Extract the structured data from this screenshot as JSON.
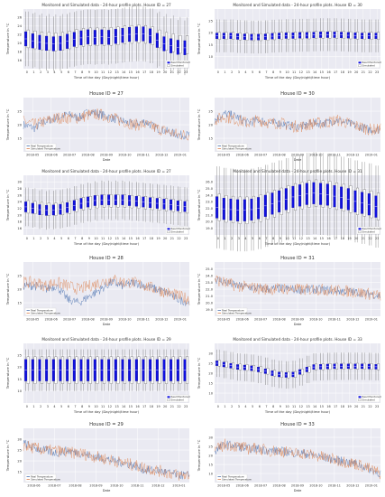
{
  "colors": {
    "panel_bg": "#eaeaf2",
    "grid": "#ffffff",
    "box_real": "#1010e0",
    "box_sim": "#ffffff",
    "line_real": "#4c72b0",
    "line_sim": "#dd8452",
    "line_extra": "#55a868",
    "text": "#333333"
  },
  "chart_data": [
    {
      "type": "box",
      "title": "Monitored and Simulated data - 24-hour profile plots. House ID = 27",
      "xlabel": "Time of the day (Day/night/time hour)",
      "ylabel": "Temperature in °C",
      "categories": [
        "0",
        "1",
        "2",
        "3",
        "4",
        "5",
        "6",
        "7",
        "8",
        "9",
        "10",
        "11",
        "12",
        "13",
        "14",
        "15",
        "16",
        "17",
        "18",
        "19",
        "20",
        "21",
        "22",
        "23"
      ],
      "yticks": [
        "16",
        "18",
        "20",
        "22",
        "24",
        "26"
      ],
      "ylim": [
        15,
        27
      ],
      "series": [
        {
          "name": "Real Monitored",
          "values": [
            21,
            20.6,
            20.3,
            20.1,
            20.0,
            20.1,
            20.5,
            20.9,
            21.2,
            21.4,
            21.3,
            21.4,
            21.3,
            21.5,
            21.7,
            21.9,
            22.0,
            22.0,
            21.6,
            20.7,
            20.0,
            19.6,
            19.3,
            19.2
          ]
        },
        {
          "name": "Simulated",
          "values": [
            21,
            20.8,
            20.6,
            20.5,
            20.4,
            20.5,
            20.8,
            21.1,
            21.3,
            21.4,
            21.4,
            21.5,
            21.5,
            21.6,
            21.8,
            21.9,
            22.0,
            21.9,
            21.6,
            21.0,
            20.5,
            20.2,
            19.9,
            19.8
          ]
        }
      ],
      "legend": "right-bottom",
      "variant": "left-dense"
    },
    {
      "type": "box",
      "title": "Monitored and Simulated data - 24-hour profile plots. House ID = 30",
      "xlabel": "Time of the day (Day/night/time hour)",
      "ylabel": "Temperature in °C",
      "categories": [
        "0",
        "1",
        "2",
        "3",
        "4",
        "5",
        "6",
        "7",
        "8",
        "9",
        "10",
        "11",
        "12",
        "13",
        "14",
        "15",
        "16",
        "17",
        "18",
        "19",
        "20",
        "21",
        "22",
        "23"
      ],
      "yticks": [
        "10",
        "15",
        "20",
        "25"
      ],
      "ylim": [
        8,
        28
      ],
      "series": [
        {
          "name": "Real Monitored",
          "values": [
            19,
            19,
            19,
            18.8,
            18.7,
            18.6,
            18.6,
            18.7,
            18.9,
            19,
            19.1,
            19.1,
            19.2,
            19.2,
            19.3,
            19.4,
            19.4,
            19.4,
            19.3,
            19.2,
            19.1,
            19,
            19,
            19
          ]
        },
        {
          "name": "Simulated",
          "values": [
            19,
            19,
            19,
            18.8,
            18.7,
            18.6,
            18.6,
            18.7,
            18.9,
            19,
            19.1,
            19.1,
            19.2,
            19.2,
            19.3,
            19.4,
            19.4,
            19.4,
            19.3,
            19.2,
            19.1,
            19,
            19,
            19
          ]
        }
      ],
      "legend": "right-bottom",
      "variant": "thin"
    },
    {
      "type": "line",
      "title": "House ID = 27",
      "xlabel": "Date",
      "ylabel": "Temperature in °C",
      "xticks": [
        "2018-05",
        "2018-06",
        "2018-07",
        "2018-08",
        "2018-09",
        "2018-10",
        "2018-11",
        "2018-12",
        "2019-01"
      ],
      "yticks": [
        "15",
        "20",
        "25"
      ],
      "ylim": [
        12,
        28
      ],
      "series": [
        {
          "name": "Real Temperature",
          "values": [
            20,
            19,
            21,
            22,
            23,
            22,
            24,
            23,
            22,
            21,
            20,
            21,
            19,
            18,
            17,
            17
          ]
        },
        {
          "name": "Simulated Temperature",
          "values": [
            21,
            20,
            21,
            22,
            22,
            22,
            23,
            23,
            22,
            21,
            20,
            20,
            19,
            18,
            17,
            17
          ]
        }
      ],
      "legend": "bottom-left"
    },
    {
      "type": "line",
      "title": "House ID = 30",
      "xlabel": "Date",
      "ylabel": "Temperature in °C",
      "xticks": [
        "2018-05",
        "2018-06",
        "2018-07",
        "2018-08",
        "2018-09",
        "2018-10",
        "2018-11",
        "2018-12",
        "2019-01"
      ],
      "yticks": [
        "15",
        "20",
        "25"
      ],
      "ylim": [
        10,
        27
      ],
      "series": [
        {
          "name": "Real Temperature",
          "values": [
            20,
            22,
            21,
            19,
            20,
            19,
            19,
            18,
            18,
            19,
            19,
            20,
            19,
            18,
            17,
            17
          ]
        },
        {
          "name": "Simulated Temperature",
          "values": [
            20,
            21,
            20,
            19,
            20,
            19,
            19,
            18,
            18,
            19,
            19,
            20,
            19,
            18,
            17,
            17
          ]
        }
      ],
      "legend": "bottom-left"
    },
    {
      "type": "box",
      "title": "Monitored and Simulated data - 24-hour profile plots. House ID = 27",
      "xlabel": "Time of the day (Day/night/time hour)",
      "ylabel": "Temperature in °C",
      "categories": [
        "0",
        "1",
        "2",
        "3",
        "4",
        "5",
        "6",
        "7",
        "8",
        "9",
        "10",
        "11",
        "12",
        "13",
        "14",
        "15",
        "16",
        "17",
        "18",
        "19",
        "20",
        "21",
        "22",
        "23"
      ],
      "yticks": [
        "16",
        "18",
        "20",
        "22",
        "24",
        "26",
        "28",
        "30"
      ],
      "ylim": [
        14,
        31
      ],
      "series": [
        {
          "name": "Real Monitored",
          "values": [
            22,
            21.6,
            21.2,
            21,
            21.1,
            21.3,
            21.8,
            22.4,
            23,
            23.4,
            23.8,
            24,
            24,
            24,
            24,
            23.8,
            23.6,
            23.4,
            23.2,
            23,
            22.8,
            22.6,
            22.3,
            22.1
          ]
        },
        {
          "name": "Simulated",
          "values": [
            22,
            21.8,
            21.5,
            21.3,
            21.3,
            21.5,
            21.9,
            22.4,
            22.9,
            23.2,
            23.5,
            23.7,
            23.7,
            23.7,
            23.7,
            23.5,
            23.4,
            23.2,
            23,
            22.8,
            22.6,
            22.4,
            22.2,
            22
          ]
        }
      ],
      "legend": "right-bottom",
      "variant": "wide"
    },
    {
      "type": "box",
      "title": "Monitored and Simulated data - 24-hour profile plots. House ID = 31",
      "xlabel": "Time of the day (Day/night/time hour)",
      "ylabel": "Temperature in °C",
      "categories": [
        "0",
        "1",
        "2",
        "3",
        "4",
        "5",
        "6",
        "7",
        "8",
        "9",
        "10",
        "11",
        "12",
        "13",
        "14",
        "15",
        "16",
        "17",
        "18",
        "19",
        "20",
        "21",
        "22",
        "23"
      ],
      "yticks": [
        "19.0",
        "20.0",
        "21.0",
        "22.0",
        "23.0",
        "24.0",
        "25.0",
        "26.0"
      ],
      "ylim": [
        18.5,
        26.5
      ],
      "series": [
        {
          "name": "Real Monitored",
          "values": [
            22.2,
            22,
            21.9,
            21.8,
            21.8,
            21.9,
            22.1,
            22.4,
            22.7,
            23,
            23.3,
            23.6,
            23.8,
            24,
            24.1,
            24,
            23.9,
            23.7,
            23.5,
            23.3,
            23,
            22.8,
            22.6,
            22.3
          ]
        },
        {
          "name": "Simulated",
          "values": [
            22.2,
            22,
            21.9,
            21.8,
            21.8,
            21.9,
            22.1,
            22.4,
            22.7,
            23,
            23.3,
            23.6,
            23.8,
            24,
            24.1,
            24,
            23.9,
            23.7,
            23.5,
            23.3,
            23,
            22.8,
            22.6,
            22.3
          ]
        }
      ],
      "legend": "right-bottom",
      "variant": "wide"
    },
    {
      "type": "line",
      "title": "House ID = 28",
      "xlabel": "Date",
      "ylabel": "Temperature in °C",
      "xticks": [
        "2018-05",
        "2018-06",
        "2018-07",
        "2018-08",
        "2018-09",
        "2018-10",
        "2018-11",
        "2018-12",
        "2019-01"
      ],
      "yticks": [
        "15",
        "20",
        "25"
      ],
      "ylim": [
        12,
        28
      ],
      "series": [
        {
          "name": "Real Temperature",
          "values": [
            21,
            21,
            20,
            21,
            17,
            16,
            18,
            20,
            22,
            21,
            22,
            21,
            20,
            19,
            17,
            16
          ]
        },
        {
          "name": "Simulated Temperature",
          "values": [
            22,
            22,
            21,
            22,
            21,
            20,
            21,
            22,
            23,
            22,
            22,
            21,
            20,
            19,
            18,
            17
          ]
        }
      ],
      "legend": "bottom-left"
    },
    {
      "type": "line",
      "title": "House ID = 31",
      "xlabel": "Date",
      "ylabel": "Temperature in °C",
      "xticks": [
        "2018-05",
        "2018-06",
        "2018-07",
        "2018-08",
        "2018-09",
        "2018-10",
        "2018-11",
        "2018-12",
        "2019-01"
      ],
      "yticks": [
        "19.0",
        "20.0",
        "21.0",
        "22.0",
        "23.0",
        "24.0",
        "25.0"
      ],
      "ylim": [
        18.5,
        26.5
      ],
      "series": [
        {
          "name": "Real Temperature",
          "values": [
            24,
            23.5,
            23,
            22.8,
            22.6,
            22.5,
            22.6,
            22.5,
            22.4,
            22.5,
            22.4,
            22.3,
            22.2,
            22,
            21.8,
            21.5
          ]
        },
        {
          "name": "Simulated Temperature",
          "values": [
            24,
            23.4,
            23,
            22.8,
            22.6,
            22.5,
            22.6,
            22.5,
            22.4,
            22.5,
            22.4,
            22.3,
            22.2,
            22,
            21.8,
            21.5
          ]
        }
      ],
      "legend": "bottom-left"
    },
    {
      "type": "box",
      "title": "Monitored and Simulated data - 24-hour profile plots. House ID = 29",
      "xlabel": "Time of the day (Day/night/time hour)",
      "ylabel": "Temperature in °C",
      "categories": [
        "0",
        "1",
        "2",
        "3",
        "4",
        "5",
        "6",
        "7",
        "8",
        "9",
        "10",
        "11",
        "12",
        "13",
        "14",
        "15",
        "16",
        "17",
        "18",
        "19",
        "20",
        "21",
        "22",
        "23"
      ],
      "yticks": [
        "10",
        "15",
        "20",
        "25"
      ],
      "ylim": [
        8,
        28
      ],
      "series": [
        {
          "name": "Real Monitored",
          "values": [
            19,
            19,
            19,
            19,
            19,
            19,
            19,
            19,
            19,
            19,
            19,
            19,
            19,
            19,
            19,
            19,
            19,
            19,
            19,
            19,
            19,
            19,
            19,
            19
          ]
        },
        {
          "name": "Simulated",
          "values": [
            19,
            19,
            19,
            19,
            19,
            19,
            19,
            19,
            19,
            19,
            19,
            19,
            19,
            19,
            19,
            19,
            19,
            19,
            19,
            19,
            19,
            19,
            19,
            19
          ]
        }
      ],
      "legend": "right-bottom",
      "variant": "tall"
    },
    {
      "type": "box",
      "title": "Monitored and Simulated data - 24-hour profile plots. House ID = 33",
      "xlabel": "Time of the day (Day/night/time hour)",
      "ylabel": "Temperature in °C",
      "categories": [
        "0",
        "1",
        "2",
        "3",
        "4",
        "5",
        "6",
        "7",
        "8",
        "9",
        "10",
        "11",
        "12",
        "13",
        "14",
        "15",
        "16",
        "17",
        "18",
        "19",
        "20",
        "21",
        "22",
        "23"
      ],
      "yticks": [
        "10",
        "15",
        "20",
        "25",
        "30"
      ],
      "ylim": [
        8,
        32
      ],
      "series": [
        {
          "name": "Real Monitored",
          "values": [
            24,
            23.5,
            23,
            22.5,
            22.3,
            22,
            21.5,
            20.8,
            20,
            19.5,
            19.3,
            19.5,
            20.5,
            21.5,
            22.5,
            22.6,
            22.7,
            22.8,
            22.8,
            22.8,
            22.8,
            22.8,
            22.7,
            22.6
          ]
        },
        {
          "name": "Simulated",
          "values": [
            24,
            23.5,
            23,
            22.5,
            22.3,
            22,
            21.5,
            20.8,
            20,
            19.5,
            19.3,
            19.5,
            20.5,
            21.5,
            22.5,
            22.6,
            22.7,
            22.8,
            22.8,
            22.8,
            22.8,
            22.8,
            22.7,
            22.6
          ]
        }
      ],
      "legend": "right-bottom",
      "variant": "thin"
    },
    {
      "type": "line",
      "title": "House ID = 29",
      "xlabel": "Date",
      "ylabel": "Temperature in °C",
      "xticks": [
        "2018-06",
        "2018-07",
        "2018-08",
        "2018-09",
        "2018-10",
        "2018-11",
        "2018-12",
        "2019-01"
      ],
      "yticks": [
        "15",
        "20",
        "25",
        "30"
      ],
      "ylim": [
        10,
        32
      ],
      "series": [
        {
          "name": "Real Temperature",
          "values": [
            26,
            24,
            23,
            22,
            23,
            22,
            21,
            20,
            19,
            18,
            17,
            15,
            15,
            14,
            13,
            13
          ]
        },
        {
          "name": "Simulated Temperature",
          "values": [
            25,
            24,
            23,
            23,
            22,
            22,
            21,
            20,
            19,
            18,
            17,
            16,
            15,
            14,
            13,
            13
          ]
        }
      ],
      "legend": "bottom-left"
    },
    {
      "type": "line",
      "title": "House ID = 33",
      "xlabel": "Date",
      "ylabel": "Temperature in °C",
      "xticks": [
        "2018-05",
        "2018-06",
        "2018-07",
        "2018-08",
        "2018-09",
        "2018-10",
        "2018-11",
        "2018-12",
        "2019-01"
      ],
      "yticks": [
        "10",
        "15",
        "20",
        "25",
        "30"
      ],
      "ylim": [
        8,
        32
      ],
      "series": [
        {
          "name": "Real Temperature",
          "values": [
            22,
            25,
            24,
            23,
            23,
            22,
            22,
            21,
            21,
            20,
            19,
            18,
            17,
            16,
            14,
            12
          ]
        },
        {
          "name": "Simulated Temperature",
          "values": [
            22,
            25,
            24,
            23,
            23,
            22,
            22,
            21,
            21,
            20,
            19,
            18,
            17,
            16,
            14,
            12
          ]
        }
      ],
      "legend": "bottom-left"
    }
  ]
}
